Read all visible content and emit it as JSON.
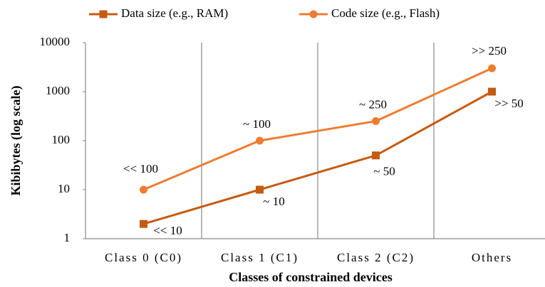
{
  "chart_data": {
    "type": "line",
    "xlabel": "Classes of constrained devices",
    "ylabel": "Kibibytes (log scale)",
    "categories": [
      "Class 0 (C0)",
      "Class 1 (C1)",
      "Class 2 (C2)",
      "Others"
    ],
    "series": [
      {
        "name": "Data size (e.g., RAM)",
        "color": "#c55a11",
        "marker": "square",
        "values": [
          2,
          10,
          50,
          1000
        ],
        "annotations": [
          "<< 10",
          "~ 10",
          "~ 50",
          ">> 50"
        ]
      },
      {
        "name": "Code size (e.g., Flash)",
        "color": "#ed7d31",
        "marker": "circle",
        "values": [
          10,
          100,
          250,
          3000
        ],
        "annotations": [
          "<< 100",
          "~ 100",
          "~ 250",
          ">> 250"
        ]
      }
    ],
    "ylim": [
      1,
      10000
    ],
    "yticks": [
      1,
      10,
      100,
      1000,
      10000
    ],
    "log_y": true,
    "grid": "vertical",
    "legend": "top"
  }
}
